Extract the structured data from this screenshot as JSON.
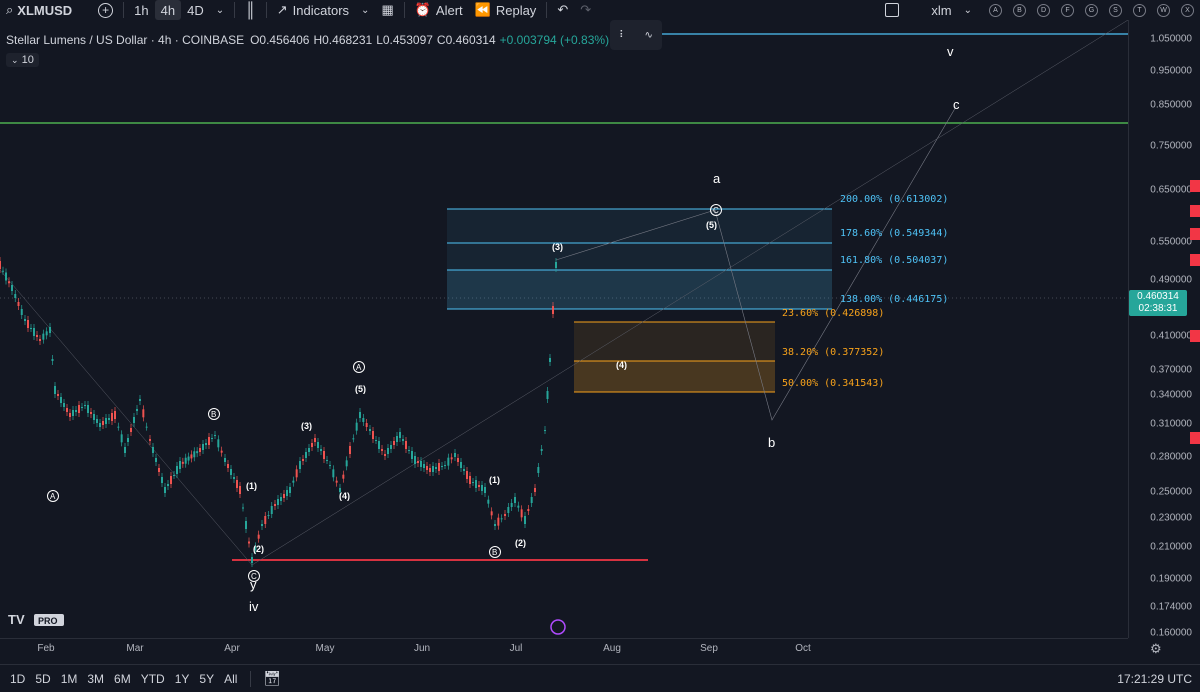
{
  "toolbar": {
    "symbol": "XLMUSD",
    "intervals": [
      "1h",
      "4h",
      "4D"
    ],
    "indicators_label": "Indicators",
    "alert_label": "Alert",
    "replay_label": "Replay",
    "layout_name": "xlm",
    "letter_buttons": [
      "A",
      "B",
      "D",
      "F",
      "G",
      "S",
      "T",
      "W",
      "X"
    ]
  },
  "legend": {
    "title": "Stellar Lumens / US Dollar · 4h · COINBASE",
    "open": "O0.456406",
    "high": "H0.468231",
    "low": "L0.453097",
    "close": "C0.460314",
    "change": "+0.003794 (+0.83%)",
    "indicator_value": "10"
  },
  "price_axis": {
    "labels": [
      "1.050000",
      "0.950000",
      "0.850000",
      "0.750000",
      "0.650000",
      "0.550000",
      "0.490000",
      "0.410000",
      "0.370000",
      "0.340000",
      "0.310000",
      "0.280000",
      "0.250000",
      "0.230000",
      "0.210000",
      "0.190000",
      "0.174000",
      "0.160000"
    ],
    "current_price": "0.460314",
    "countdown": "02:38:31"
  },
  "time_axis": {
    "labels": [
      "Feb",
      "Mar",
      "Apr",
      "May",
      "Jun",
      "Jul",
      "Aug",
      "Sep",
      "Oct"
    ]
  },
  "fibs": {
    "blue": [
      "200.00% (0.613002)",
      "178.60% (0.549344)",
      "161.80% (0.504037)",
      "138.00% (0.446175)"
    ],
    "orange": [
      "23.60% (0.426898)",
      "38.20% (0.377352)",
      "50.00% (0.341543)"
    ]
  },
  "waves": {
    "iv": "iv",
    "y": "y",
    "a": "a",
    "b": "b",
    "c": "c",
    "v": "v",
    "n1": "(1)",
    "n2": "(2)",
    "n3": "(3)",
    "n4": "(4)",
    "n5": "(5)"
  },
  "bottom": {
    "ranges": [
      "1D",
      "5D",
      "1M",
      "3M",
      "6M",
      "YTD",
      "1Y",
      "5Y",
      "All"
    ],
    "clock": "17:21:29 UTC"
  },
  "colors": {
    "background": "#131722",
    "fib_blue": "#4fc3f7",
    "fib_orange": "#f7a21b",
    "support_red": "#f23645",
    "resistance_green": "#4caf50",
    "price_tag": "#26a69a"
  }
}
